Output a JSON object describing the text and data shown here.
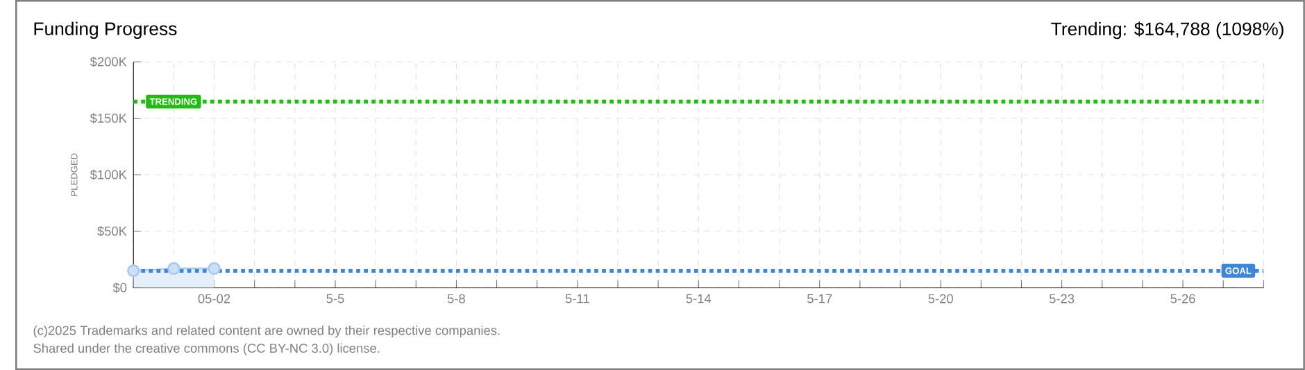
{
  "chart_data": {
    "type": "area",
    "title": "Funding Progress",
    "subtitle": "Trending: $164,788 (1098%)",
    "ylabel": "PLEDGED",
    "categories": [
      null,
      null,
      "05-02",
      null,
      null,
      "5-5",
      null,
      null,
      "5-8",
      null,
      null,
      "5-11",
      null,
      null,
      "5-14",
      null,
      null,
      "5-17",
      null,
      null,
      "5-20",
      null,
      null,
      "5-23",
      null,
      null,
      "5-26",
      null,
      null
    ],
    "series": [
      {
        "color": "#a9c9f0",
        "values": [
          15000,
          17000,
          17000,
          null,
          null,
          null,
          null,
          null,
          null,
          null,
          null,
          null,
          null,
          null,
          null,
          null,
          null,
          null,
          null,
          null,
          null,
          null,
          null,
          null,
          null,
          null,
          null,
          null,
          null
        ]
      }
    ],
    "marker": "circle",
    "grid": true,
    "ylim": [
      0,
      200000
    ],
    "yticks": [
      {
        "value": 0,
        "label": "$0"
      },
      {
        "value": 50000,
        "label": "$50K"
      },
      {
        "value": 100000,
        "label": "$100K"
      },
      {
        "value": 150000,
        "label": "$150K"
      },
      {
        "value": 200000,
        "label": "$200K"
      }
    ],
    "ref_lines": [
      {
        "axis": "y",
        "value": 164788,
        "label": "TRENDING",
        "color": "#22bb11",
        "line_style": "dotted"
      },
      {
        "axis": "y",
        "value": 15000,
        "label": "GOAL",
        "color": "#3f86d6",
        "line_style": "dotted"
      }
    ],
    "annotations": [
      "(c)2025 Trademarks and related content are owned by their respective companies.",
      "Shared under the creative commons (CC BY-NC 3.0) license."
    ]
  }
}
